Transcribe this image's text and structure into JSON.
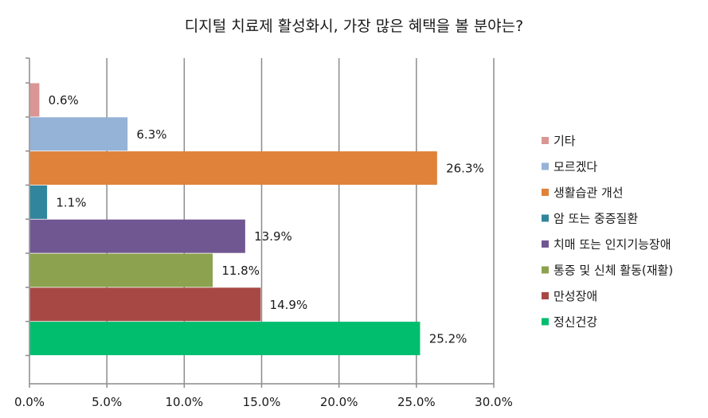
{
  "chart_data": {
    "type": "bar",
    "orientation": "horizontal",
    "title": "디지털 치료제 활성화시, 가장 많은 혜택을 볼 분야는?",
    "categories": [
      "기타",
      "모르겠다",
      "생활습관 개선",
      "암 또는 중증질환",
      "치매 또는 인지기능장애",
      "통증 및 신체 활동(재활)",
      "만성장애",
      "정신건강"
    ],
    "values": [
      0.6,
      6.3,
      26.3,
      1.1,
      13.9,
      11.8,
      14.9,
      25.2
    ],
    "value_labels": [
      "0.6%",
      "6.3%",
      "26.3%",
      "1.1%",
      "13.9%",
      "11.8%",
      "14.9%",
      "25.2%"
    ],
    "colors": [
      "#D99694",
      "#95B3D7",
      "#E0823A",
      "#31859C",
      "#715792",
      "#8CA24E",
      "#A84845",
      "#00BE6E"
    ],
    "xlim": [
      0,
      30
    ],
    "x_ticks": [
      0,
      5,
      10,
      15,
      20,
      25,
      30
    ],
    "x_tick_labels": [
      "0.0%",
      "5.0%",
      "10.0%",
      "15.0%",
      "20.0%",
      "25.0%",
      "30.0%"
    ],
    "grid": true,
    "legend_position": "right",
    "xlabel": "",
    "ylabel": ""
  }
}
